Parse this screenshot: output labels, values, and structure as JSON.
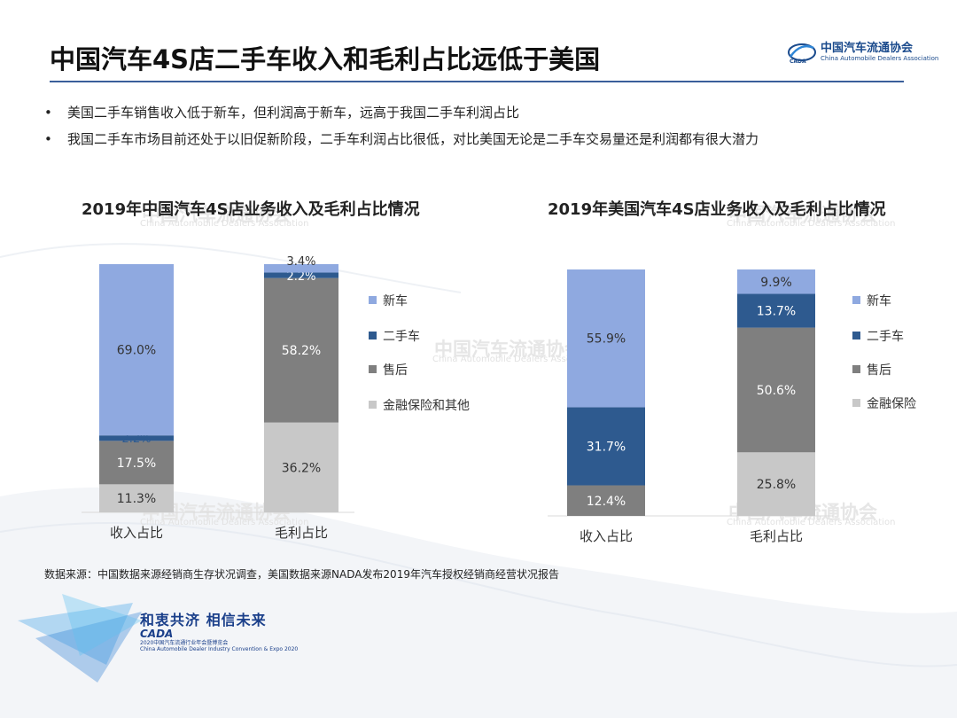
{
  "header": {
    "title": "中国汽车4S店二手车收入和毛利占比远低于美国",
    "logo_name": "中国汽车流通协会",
    "logo_en": "China Automobile Dealers Association"
  },
  "bullets": [
    "美国二手车销售收入低于新车，但利润高于新车，远高于我国二手车利润占比",
    "我国二手车市场目前还处于以旧促新阶段，二手车利润占比很低，对比美国无论是二手车交易量还是利润都有很大潜力"
  ],
  "watermark": {
    "cn": "中国汽车流通协会",
    "en": "China Automobile Dealers Association"
  },
  "colors": {
    "new_car": "#8fa9e0",
    "used_car": "#2e5a8f",
    "after_sales": "#7f7f7f",
    "finance": "#c8c8c8",
    "title_rule": "#3a5f9a"
  },
  "chart_data": [
    {
      "type": "bar",
      "stacked": true,
      "title": "2019年中国汽车4S店业务收入及毛利占比情况",
      "categories": [
        "收入占比",
        "毛利占比"
      ],
      "series": [
        {
          "name": "新车",
          "values": [
            69.0,
            3.4
          ],
          "labels": [
            "69.0%",
            "3.4%"
          ],
          "color": "#8fa9e0"
        },
        {
          "name": "二手车",
          "values": [
            2.2,
            2.2
          ],
          "labels": [
            "2.2%",
            "2.2%"
          ],
          "color": "#2e5a8f"
        },
        {
          "name": "售后",
          "values": [
            17.5,
            58.2
          ],
          "labels": [
            "17.5%",
            "58.2%"
          ],
          "color": "#7f7f7f"
        },
        {
          "name": "金融保险和其他",
          "values": [
            11.3,
            36.2
          ],
          "labels": [
            "11.3%",
            "36.2%"
          ],
          "color": "#c8c8c8"
        }
      ],
      "ylim": [
        0,
        100
      ],
      "legend": "right"
    },
    {
      "type": "bar",
      "stacked": true,
      "title": "2019年美国汽车4S店业务收入及毛利占比情况",
      "categories": [
        "收入占比",
        "毛利占比"
      ],
      "series": [
        {
          "name": "新车",
          "values": [
            55.9,
            9.9
          ],
          "labels": [
            "55.9%",
            "9.9%"
          ],
          "color": "#8fa9e0"
        },
        {
          "name": "二手车",
          "values": [
            31.7,
            13.7
          ],
          "labels": [
            "31.7%",
            "13.7%"
          ],
          "color": "#2e5a8f"
        },
        {
          "name": "售后",
          "values": [
            12.4,
            50.6
          ],
          "labels": [
            "12.4%",
            "50.6%"
          ],
          "color": "#7f7f7f"
        },
        {
          "name": "金融保险",
          "values": [
            0,
            25.8
          ],
          "labels": [
            "",
            "25.8%"
          ],
          "color": "#c8c8c8"
        }
      ],
      "ylim": [
        0,
        100
      ],
      "legend": "right"
    }
  ],
  "footer": {
    "source": "数据来源：中国数据来源经销商生存状况调查，美国数据来源NADA发布2019年汽车授权经销商经营状况报告",
    "slogan": "和衷共济 相信未来",
    "brand": "CADA",
    "expo_line1": "2020中国汽车流通行业年会暨博览会",
    "expo_line2": "China Automobile Dealer Industry Convention & Expo 2020"
  }
}
